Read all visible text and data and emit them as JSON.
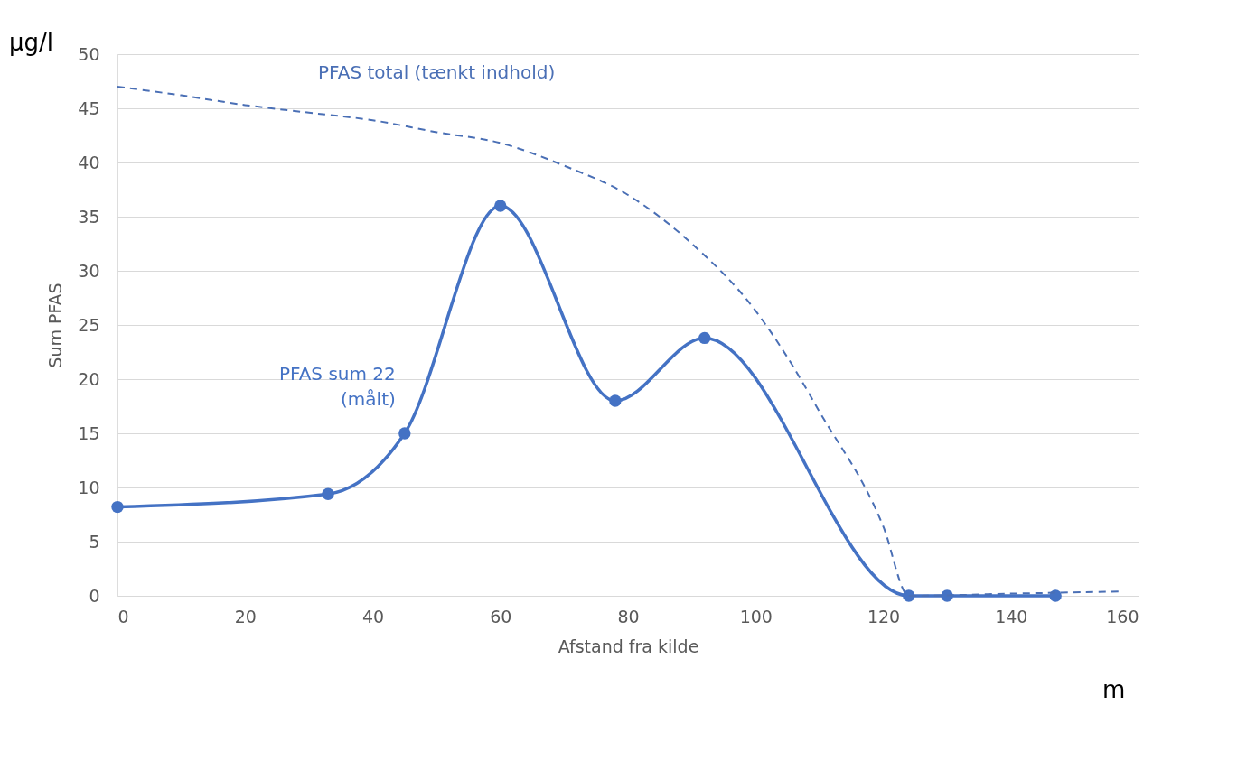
{
  "chart_data": {
    "type": "line",
    "xlabel": "Afstand fra kilde",
    "ylabel": "Sum PFAS",
    "annotations": [
      "µg/l",
      "m"
    ],
    "xlim": [
      0,
      160
    ],
    "xticks": [
      0,
      20,
      40,
      60,
      80,
      100,
      120,
      140,
      160
    ],
    "ylim": [
      0,
      50
    ],
    "yticks": [
      0,
      5,
      10,
      15,
      20,
      25,
      30,
      35,
      40,
      45,
      50
    ],
    "grid": "y",
    "legend": false,
    "series": [
      {
        "name": "PFAS sum 22\n(målt)",
        "color": "#4472c4",
        "marker": "circle",
        "line_style": "solid",
        "x": [
          0,
          33,
          45,
          60,
          78,
          92,
          124,
          130,
          147
        ],
        "values": [
          8.2,
          9.4,
          15,
          36,
          18,
          23.8,
          0,
          0,
          0
        ]
      },
      {
        "name": "PFAS total (tænkt indhold)",
        "color": "#4a6fb5",
        "marker": "none",
        "line_style": "dashed",
        "x": [
          0,
          10,
          20,
          30,
          40,
          50,
          60,
          70,
          80,
          90,
          100,
          105,
          110,
          120,
          124,
          140,
          157
        ],
        "values": [
          47,
          46.2,
          45.3,
          44.6,
          43.9,
          42.8,
          41.8,
          39.7,
          37,
          32.5,
          26.3,
          22,
          17,
          6.4,
          0,
          0.2,
          0.4
        ]
      }
    ]
  }
}
